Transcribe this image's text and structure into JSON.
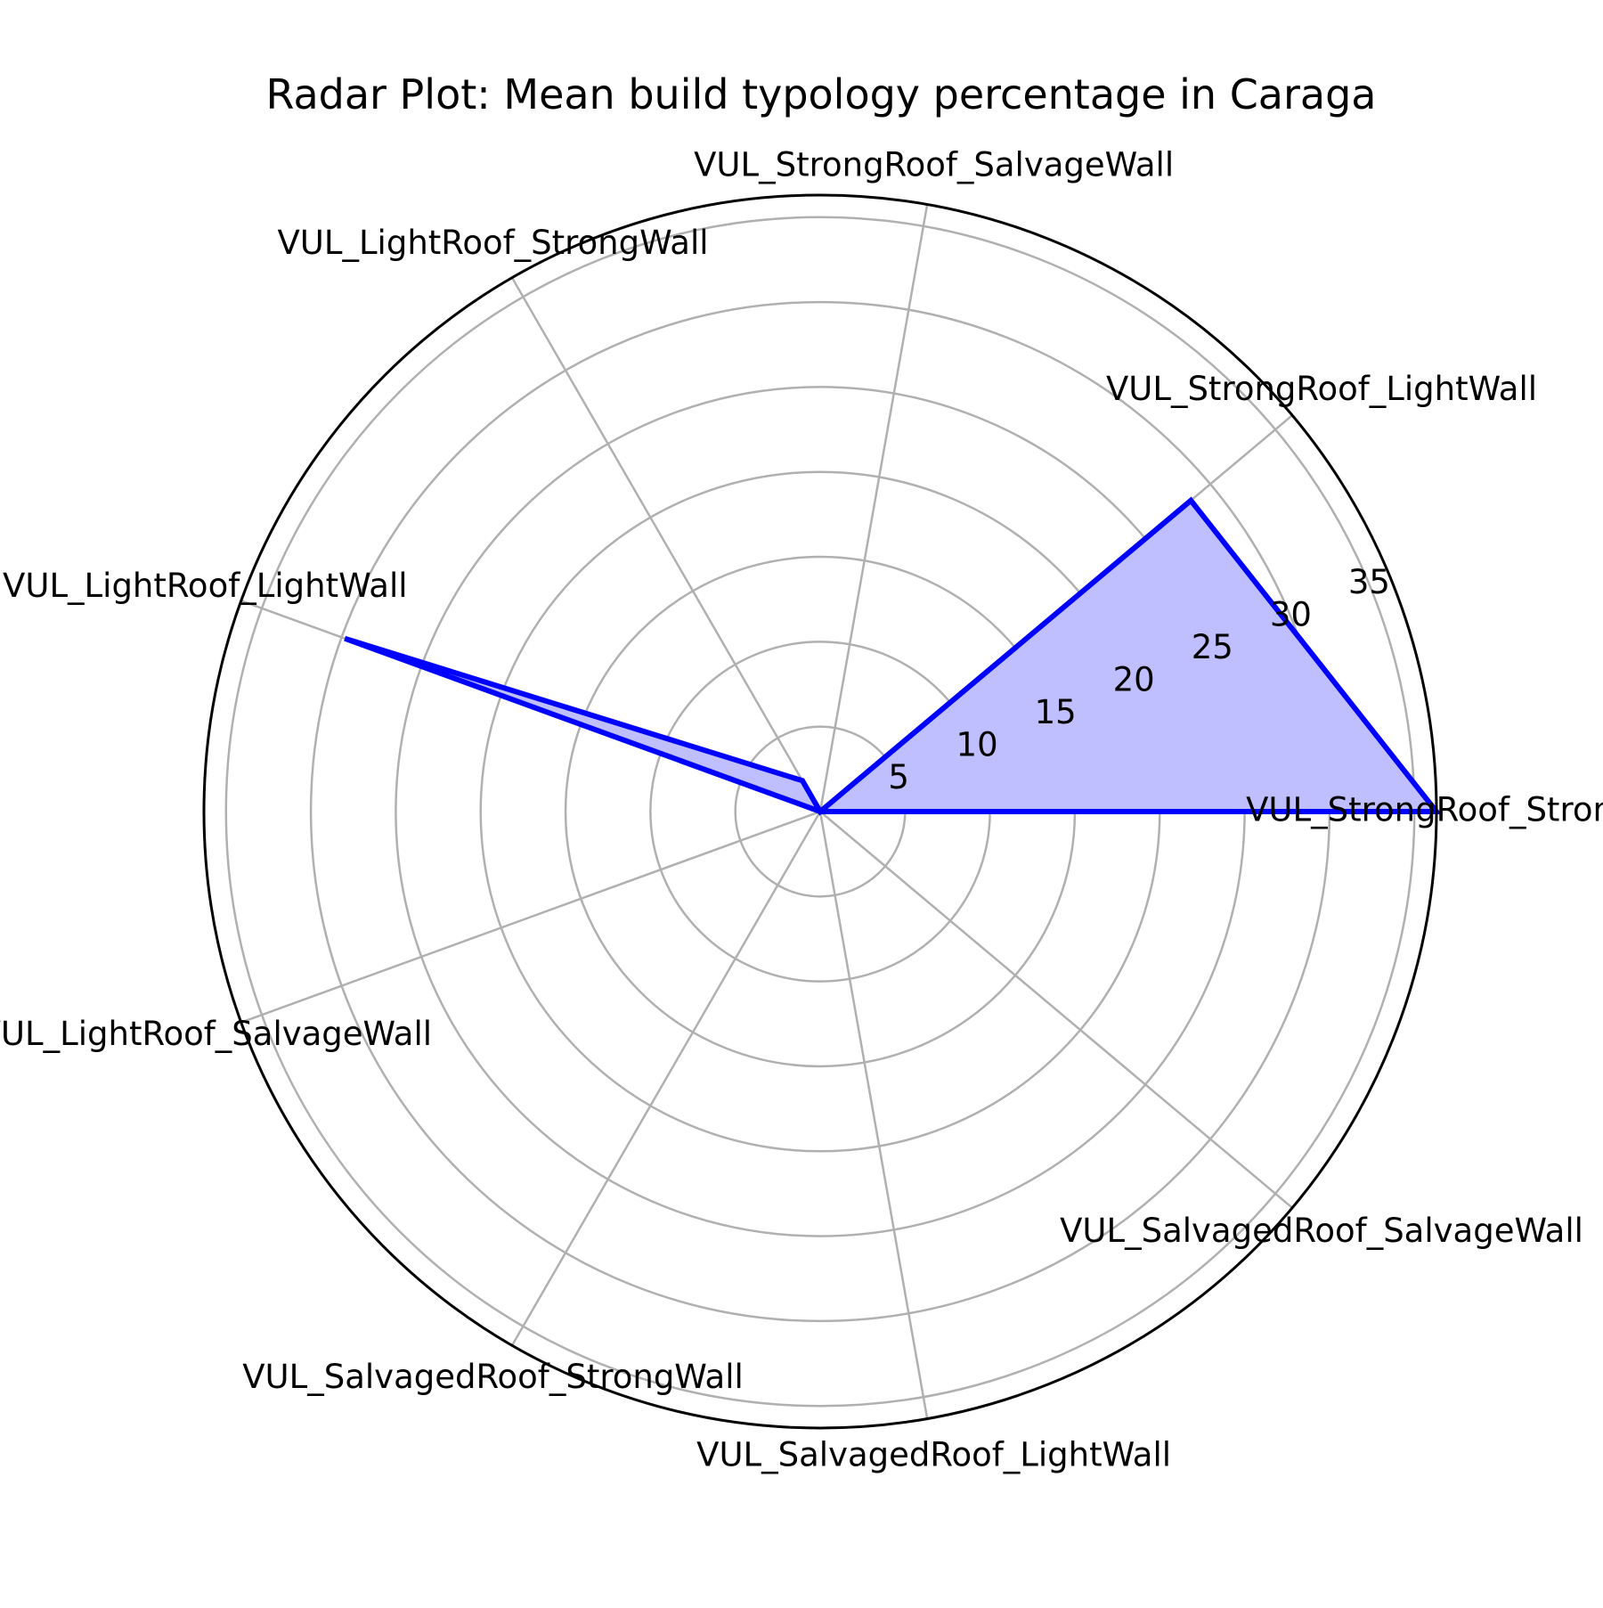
{
  "chart_data": {
    "type": "radar",
    "title": "Radar Plot: Mean build typology percentage in Caraga",
    "categories": [
      "VUL_StrongRoof_StrongWall",
      "VUL_StrongRoof_LightWall",
      "VUL_StrongRoof_SalvageWall",
      "VUL_LightRoof_StrongWall",
      "VUL_LightRoof_LightWall",
      "VUL_LightRoof_SalvageWall",
      "VUL_SalvagedRoof_StrongWall",
      "VUL_SalvagedRoof_LightWall",
      "VUL_SalvagedRoof_SalvageWall"
    ],
    "series": [
      {
        "values": [
          36.3,
          28.5,
          0.0,
          2.1,
          29.8,
          0.0,
          0.0,
          0.0,
          0.0
        ],
        "color": "#0000ff",
        "fill_color": "#bfbfff"
      }
    ],
    "r_ticks": [
      5,
      10,
      15,
      20,
      25,
      30,
      35
    ],
    "r_tick_labels": [
      "5",
      "10",
      "15",
      "20",
      "25",
      "30",
      "35"
    ],
    "rlim": [
      0,
      36.3
    ],
    "grid": true,
    "grid_color": "#b0b0b0"
  }
}
